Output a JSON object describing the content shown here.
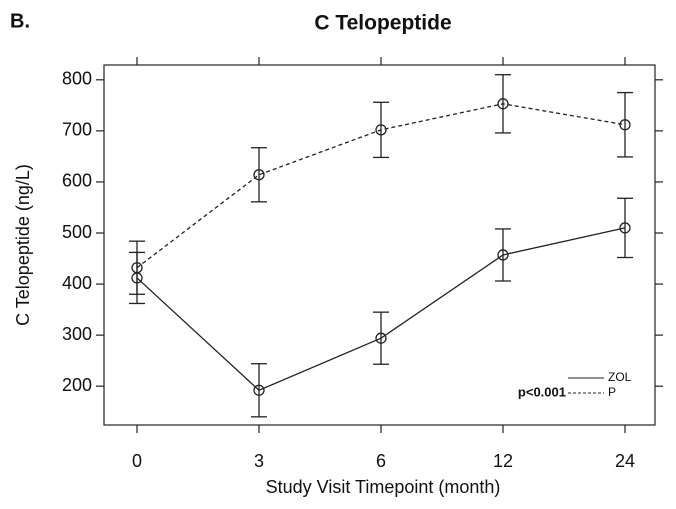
{
  "chart_data": {
    "type": "line",
    "panel_label": "B.",
    "title": "C Telopeptide",
    "x_label": "Study Visit Timepoint (month)",
    "y_label": "C Telopeptide (ng/L)",
    "categories": [
      "0",
      "3",
      "6",
      "12",
      "24"
    ],
    "series": [
      {
        "name": "ZOL",
        "color": "#222222",
        "dash": "solid",
        "values": [
          412,
          192,
          294,
          457,
          510
        ],
        "errors": [
          50,
          52,
          51,
          51,
          58
        ]
      },
      {
        "name": "P",
        "color": "#222222",
        "dash": "dashed",
        "values": [
          432,
          614,
          702,
          753,
          712
        ],
        "errors": [
          52,
          53,
          54,
          57,
          63
        ]
      }
    ],
    "annotation": "p<0.001",
    "ylim": [
      124,
      829
    ],
    "yticks": [
      200,
      300,
      400,
      500,
      600,
      700,
      800
    ],
    "grid": false,
    "legend_position": "lower right"
  }
}
